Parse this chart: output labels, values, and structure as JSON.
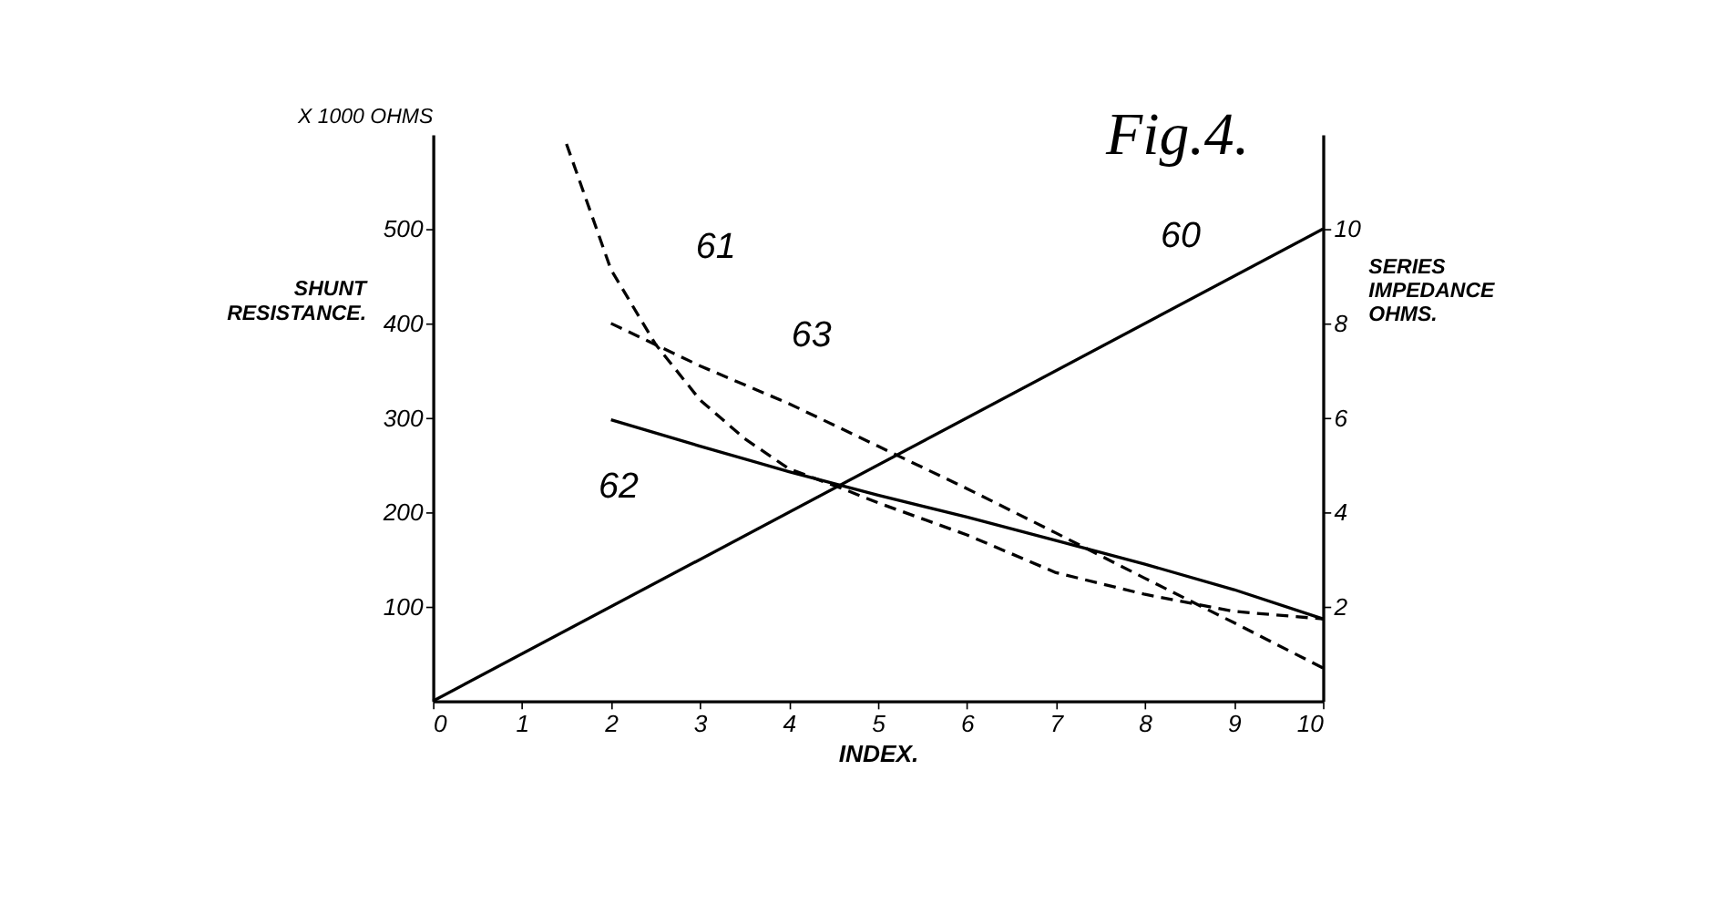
{
  "chart_data": {
    "type": "line",
    "title": "Fig.4.",
    "xlabel": "INDEX.",
    "ylabel": "SHUNT RESISTANCE.",
    "y2label": "SERIES IMPEDANCE OHMS.",
    "xlim": [
      0,
      10
    ],
    "xticks": [
      0,
      1,
      2,
      3,
      4,
      5,
      6,
      7,
      8,
      9,
      10
    ],
    "ylim": [
      0,
      600
    ],
    "yticks": [
      100,
      200,
      300,
      400,
      500
    ],
    "y2lim": [
      0,
      12
    ],
    "y2ticks": [
      2,
      4,
      6,
      8,
      10
    ],
    "grid": false,
    "marker": "none",
    "series": [
      {
        "name": "60",
        "color": "#000000",
        "axis": "y2",
        "line_style": "solid",
        "x": [
          0,
          10
        ],
        "values": [
          0,
          10
        ]
      },
      {
        "name": "61",
        "color": "#000000",
        "line_style": "dashed",
        "x": [
          1.5,
          2,
          2.5,
          3,
          3.5,
          4,
          4.6,
          5,
          6,
          7,
          8,
          9,
          10
        ],
        "values": [
          590,
          457,
          378,
          319,
          278,
          246,
          225,
          210,
          176,
          136,
          113,
          95,
          87
        ]
      },
      {
        "name": "62",
        "color": "#000000",
        "line_style": "solid",
        "x": [
          2,
          3,
          4,
          5,
          6,
          7,
          8,
          9,
          10
        ],
        "values": [
          298,
          270,
          243,
          218,
          195,
          170,
          145,
          118,
          87
        ]
      },
      {
        "name": "63",
        "color": "#000000",
        "line_style": "dashed",
        "x": [
          2,
          3,
          4,
          5,
          6,
          7,
          8,
          9,
          10
        ],
        "values": [
          400,
          355,
          315,
          270,
          225,
          178,
          130,
          83,
          35
        ]
      }
    ],
    "annotations": [
      "X 1000 OHMS"
    ]
  }
}
